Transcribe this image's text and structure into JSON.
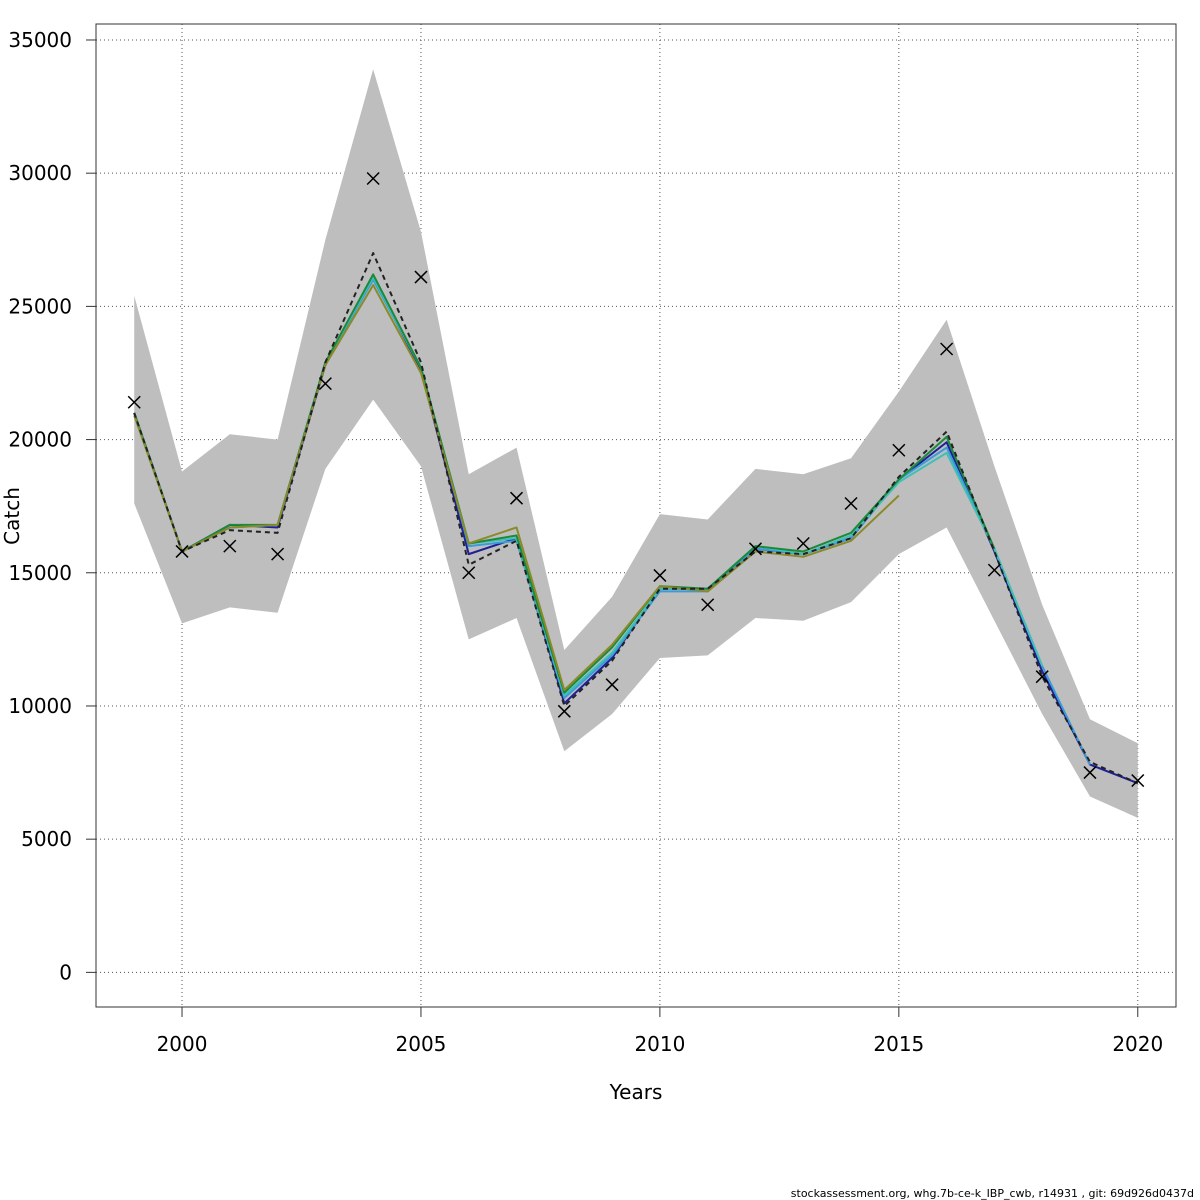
{
  "chart_data": {
    "type": "line",
    "xlabel": "Years",
    "ylabel": "Catch",
    "xlim": [
      1998.2,
      2020.8
    ],
    "ylim": [
      -1300,
      35600
    ],
    "xticks": [
      2000,
      2005,
      2010,
      2015,
      2020
    ],
    "yticks": [
      0,
      5000,
      10000,
      15000,
      20000,
      25000,
      30000,
      35000
    ],
    "grid": true,
    "band": {
      "color": "#bebebe",
      "x": [
        1999,
        2000,
        2001,
        2002,
        2003,
        2004,
        2005,
        2006,
        2007,
        2008,
        2009,
        2010,
        2011,
        2012,
        2013,
        2014,
        2015,
        2016,
        2017,
        2018,
        2019,
        2020
      ],
      "upper": [
        25400,
        18800,
        20200,
        20000,
        27500,
        33900,
        27800,
        18700,
        19700,
        12100,
        14100,
        17200,
        17000,
        18900,
        18700,
        19300,
        21800,
        24500,
        19000,
        13800,
        9500,
        8600
      ],
      "lower": [
        17600,
        13100,
        13700,
        13500,
        18900,
        21500,
        19000,
        12500,
        13300,
        8300,
        9700,
        11800,
        11900,
        13300,
        13200,
        13900,
        15700,
        16700,
        13200,
        9700,
        6600,
        5800
      ]
    },
    "series": [
      {
        "color": "#1f1f9a",
        "width": 2,
        "dash": "",
        "x": [
          1999,
          2000,
          2001,
          2002,
          2003,
          2004,
          2005,
          2006,
          2007,
          2008,
          2009,
          2010,
          2011,
          2012,
          2013,
          2014,
          2015,
          2016,
          2017,
          2018,
          2019,
          2020
        ],
        "values": [
          21000,
          15800,
          16800,
          16700,
          22800,
          26100,
          22600,
          15700,
          16300,
          10100,
          11800,
          14400,
          14400,
          15900,
          15700,
          16300,
          18500,
          19900,
          15800,
          11300,
          7800,
          7100
        ]
      },
      {
        "color": "#3a9bd9",
        "width": 2,
        "dash": "",
        "x": [
          1999,
          2000,
          2001,
          2002,
          2003,
          2004,
          2005,
          2006,
          2007,
          2008,
          2009,
          2010,
          2011,
          2012,
          2013,
          2014,
          2015,
          2016,
          2017,
          2018,
          2019
        ],
        "values": [
          21000,
          15800,
          16700,
          16800,
          22900,
          26000,
          22700,
          16000,
          16200,
          10300,
          11900,
          14300,
          14300,
          15900,
          15700,
          16300,
          18500,
          19700,
          15900,
          11500,
          7800
        ]
      },
      {
        "color": "#3fc0b6",
        "width": 2,
        "dash": "",
        "x": [
          1999,
          2000,
          2001,
          2002,
          2003,
          2004,
          2005,
          2006,
          2007,
          2008,
          2009,
          2010,
          2011,
          2012,
          2013,
          2014,
          2015,
          2016,
          2017,
          2018
        ],
        "values": [
          21000,
          15800,
          16700,
          16800,
          22900,
          26100,
          22700,
          16100,
          16300,
          10400,
          12000,
          14400,
          14400,
          16000,
          15700,
          16400,
          18400,
          19500,
          15900,
          11500
        ]
      },
      {
        "color": "#1b8a3a",
        "width": 2,
        "dash": "",
        "x": [
          1999,
          2000,
          2001,
          2002,
          2003,
          2004,
          2005,
          2006,
          2007,
          2008,
          2009,
          2010,
          2011,
          2012,
          2013,
          2014,
          2015,
          2016,
          2017
        ],
        "values": [
          21000,
          15800,
          16800,
          16800,
          22900,
          26200,
          22700,
          16100,
          16400,
          10500,
          12200,
          14500,
          14400,
          16000,
          15800,
          16500,
          18500,
          20100,
          15900
        ]
      },
      {
        "color": "#8a8a2a",
        "width": 2,
        "dash": "",
        "x": [
          1999,
          2000,
          2001,
          2002,
          2003,
          2004,
          2005,
          2006,
          2007,
          2008,
          2009,
          2010,
          2011,
          2012,
          2013,
          2014,
          2015
        ],
        "values": [
          20900,
          15800,
          16700,
          16800,
          22800,
          25800,
          22500,
          16100,
          16700,
          10600,
          12300,
          14500,
          14300,
          15800,
          15600,
          16200,
          17900
        ]
      },
      {
        "color": "#222222",
        "width": 2,
        "dash": "5 4",
        "x": [
          1999,
          2000,
          2001,
          2002,
          2003,
          2004,
          2005,
          2006,
          2007,
          2008,
          2009,
          2010,
          2011,
          2012,
          2013,
          2014,
          2015,
          2016,
          2017,
          2018,
          2019,
          2020
        ],
        "values": [
          21000,
          15800,
          16600,
          16500,
          22900,
          27000,
          22900,
          15300,
          16200,
          10000,
          11700,
          14400,
          14400,
          15800,
          15700,
          16300,
          18600,
          20300,
          15800,
          11100,
          7900,
          7100
        ]
      }
    ],
    "observations": {
      "marker": "x",
      "x": [
        1999,
        2000,
        2001,
        2002,
        2003,
        2004,
        2005,
        2006,
        2007,
        2008,
        2009,
        2010,
        2011,
        2012,
        2013,
        2014,
        2015,
        2016,
        2017,
        2018,
        2019,
        2020
      ],
      "values": [
        21400,
        15800,
        16000,
        15700,
        22100,
        29800,
        26100,
        15000,
        17800,
        9800,
        10800,
        14900,
        13800,
        15900,
        16100,
        17600,
        19600,
        23400,
        15100,
        11100,
        7500,
        7200
      ]
    }
  },
  "footer": "stockassessment.org, whg.7b-ce-k_IBP_cwb, r14931 , git: 69d926d0437d"
}
